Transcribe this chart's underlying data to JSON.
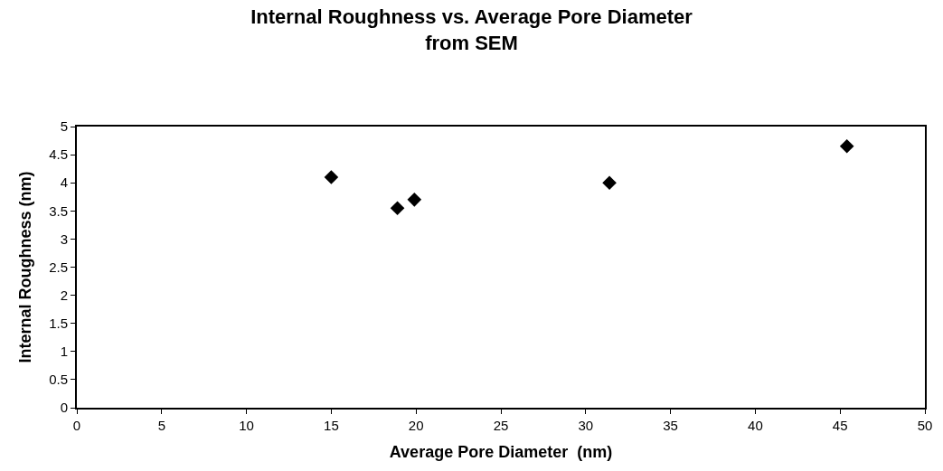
{
  "chart_data": {
    "type": "scatter",
    "title": "Internal Roughness vs. Average Pore Diameter\nfrom SEM",
    "xlabel": "Average Pore Diameter  (nm)",
    "ylabel": "Internal Roughness (nm)",
    "x": [
      15,
      18.9,
      19.9,
      31.4,
      45.4
    ],
    "series": [
      {
        "color": "#000000",
        "values": [
          4.1,
          3.55,
          3.7,
          4.0,
          4.65
        ]
      }
    ],
    "xlim": [
      0,
      50
    ],
    "xticks": [
      0,
      5,
      10,
      15,
      20,
      25,
      30,
      35,
      40,
      45,
      50
    ],
    "ylim": [
      0,
      5
    ],
    "yticks": [
      0,
      0.5,
      1,
      1.5,
      2,
      2.5,
      3,
      3.5,
      4,
      4.5,
      5
    ],
    "marker": "diamond"
  }
}
